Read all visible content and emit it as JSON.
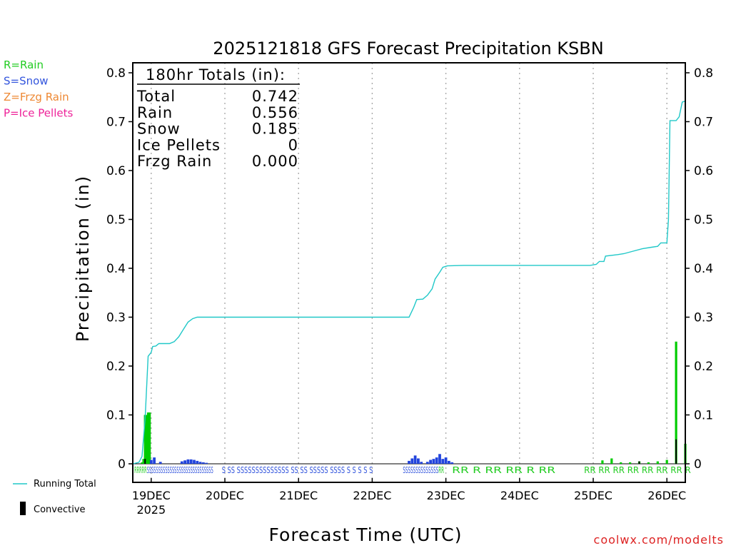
{
  "chart_data": {
    "type": "bar",
    "title": "2025121818 GFS Forecast Precipitation KSBN",
    "xlabel": "Forecast Time (UTC)",
    "ylabel": "Precipitation (in)",
    "ylim": [
      0,
      0.82
    ],
    "xlim_hours": [
      0,
      180
    ],
    "y_ticks": [
      0,
      0.1,
      0.2,
      0.3,
      0.4,
      0.5,
      0.6,
      0.7,
      0.8
    ],
    "y_tick_labels": [
      "0",
      "0.1",
      "0.2",
      "0.3",
      "0.4",
      "0.5",
      "0.6",
      "0.7",
      "0.8"
    ],
    "x_ticks": [
      {
        "hour": 6,
        "label": "19DEC",
        "sub": "2025"
      },
      {
        "hour": 30,
        "label": "20DEC",
        "sub": ""
      },
      {
        "hour": 54,
        "label": "21DEC",
        "sub": ""
      },
      {
        "hour": 78,
        "label": "22DEC",
        "sub": ""
      },
      {
        "hour": 102,
        "label": "23DEC",
        "sub": ""
      },
      {
        "hour": 126,
        "label": "24DEC",
        "sub": ""
      },
      {
        "hour": 150,
        "label": "25DEC",
        "sub": ""
      },
      {
        "hour": 174,
        "label": "26DEC",
        "sub": ""
      }
    ],
    "totals": {
      "header": "180hr Totals (in):",
      "rows": [
        {
          "label": "Total",
          "value": "0.742"
        },
        {
          "label": "Rain",
          "value": "0.556"
        },
        {
          "label": "Snow",
          "value": "0.185"
        },
        {
          "label": "Ice Pellets",
          "value": "0"
        },
        {
          "label": "Frzg Rain",
          "value": "0.000"
        }
      ]
    },
    "ptype_legend": [
      {
        "text": "R=Rain",
        "color": "#22cc22"
      },
      {
        "text": "S=Snow",
        "color": "#3355dd"
      },
      {
        "text": "Z=Frzg Rain",
        "color": "#ee8833"
      },
      {
        "text": "P=Ice Pellets",
        "color": "#ee2299"
      }
    ],
    "series_legend": {
      "running_total": "Running Total",
      "convective": "Convective"
    },
    "colors": {
      "rain": "#00cc00",
      "snow": "#2244dd",
      "total_line": "#20c8c8",
      "convective": "#000000"
    },
    "running_total": [
      [
        0,
        0
      ],
      [
        2,
        0.003
      ],
      [
        3,
        0.015
      ],
      [
        4,
        0.09
      ],
      [
        5,
        0.22
      ],
      [
        6,
        0.228
      ],
      [
        6.5,
        0.24
      ],
      [
        7.5,
        0.241
      ],
      [
        8.5,
        0.246
      ],
      [
        12,
        0.246
      ],
      [
        13.5,
        0.25
      ],
      [
        15,
        0.26
      ],
      [
        16.5,
        0.275
      ],
      [
        18,
        0.29
      ],
      [
        19.5,
        0.297
      ],
      [
        21,
        0.3
      ],
      [
        24,
        0.3
      ],
      [
        90,
        0.3
      ],
      [
        91.5,
        0.32
      ],
      [
        92.5,
        0.336
      ],
      [
        94.5,
        0.337
      ],
      [
        96,
        0.345
      ],
      [
        97.5,
        0.358
      ],
      [
        98.5,
        0.378
      ],
      [
        100,
        0.392
      ],
      [
        101,
        0.402
      ],
      [
        102.5,
        0.405
      ],
      [
        108,
        0.406
      ],
      [
        149,
        0.406
      ],
      [
        151,
        0.408
      ],
      [
        152,
        0.414
      ],
      [
        153.5,
        0.414
      ],
      [
        154,
        0.425
      ],
      [
        158,
        0.428
      ],
      [
        160,
        0.43
      ],
      [
        163,
        0.435
      ],
      [
        166,
        0.44
      ],
      [
        169,
        0.443
      ],
      [
        171,
        0.445
      ],
      [
        172,
        0.452
      ],
      [
        174,
        0.452
      ],
      [
        174.5,
        0.5
      ],
      [
        175,
        0.702
      ],
      [
        177,
        0.702
      ],
      [
        178,
        0.71
      ],
      [
        179,
        0.74
      ],
      [
        180,
        0.742
      ]
    ],
    "rain_bars": [
      [
        3,
        0.003
      ],
      [
        3.5,
        0.01
      ],
      [
        4,
        0.1
      ],
      [
        4.5,
        0.1
      ],
      [
        5,
        0.105
      ],
      [
        5.5,
        0.105
      ],
      [
        153,
        0.007
      ],
      [
        156,
        0.011
      ],
      [
        159,
        0.003
      ],
      [
        162,
        0.003
      ],
      [
        165,
        0.005
      ],
      [
        168,
        0.003
      ],
      [
        171,
        0.005
      ],
      [
        174,
        0.008
      ],
      [
        177,
        0.25
      ],
      [
        180,
        0.041
      ]
    ],
    "snow_bars": [
      [
        6,
        0.008
      ],
      [
        7,
        0.013
      ],
      [
        9,
        0.004
      ],
      [
        16,
        0.005
      ],
      [
        17,
        0.007
      ],
      [
        18,
        0.009
      ],
      [
        19,
        0.009
      ],
      [
        20,
        0.008
      ],
      [
        21,
        0.006
      ],
      [
        22,
        0.004
      ],
      [
        23,
        0.003
      ],
      [
        24,
        0.002
      ],
      [
        90,
        0.006
      ],
      [
        91,
        0.011
      ],
      [
        92,
        0.017
      ],
      [
        93,
        0.011
      ],
      [
        94,
        0.004
      ],
      [
        96,
        0.004
      ],
      [
        97,
        0.008
      ],
      [
        98,
        0.01
      ],
      [
        99,
        0.013
      ],
      [
        100,
        0.02
      ],
      [
        101,
        0.01
      ],
      [
        102,
        0.013
      ],
      [
        103,
        0.006
      ],
      [
        104,
        0.003
      ]
    ],
    "convective_bars": [
      [
        4,
        0.01
      ],
      [
        165,
        0.005
      ],
      [
        177,
        0.05
      ],
      [
        180,
        0.002
      ]
    ],
    "ptype_markers": [
      {
        "text": "RRRRRSSSSSSSSSSSSSSSSSSSSSSSSSSSSS",
        "hour": 0.5,
        "color": "#22cc22",
        "snow_from": 5
      },
      {
        "text": "S SS SSSSSSSSSSSSSS SS SS SSSSS SSSS S S S S S",
        "hour": 29,
        "color": "#3355dd",
        "snow_from": 0
      },
      {
        "text": "SSSSSSSSSSSSSSRR",
        "hour": 88,
        "color": "#3355dd",
        "snow_from": 0,
        "rain_from": 14
      },
      {
        "text": "RR   R  RR  RR   R   RR",
        "hour": 104,
        "color": "#22cc22",
        "snow_from": 99
      },
      {
        "text": "RR RR RR RR RR RR RR R",
        "hour": 147,
        "color": "#22cc22",
        "snow_from": 99
      }
    ],
    "site_credit": "coolwx.com/modelts"
  }
}
